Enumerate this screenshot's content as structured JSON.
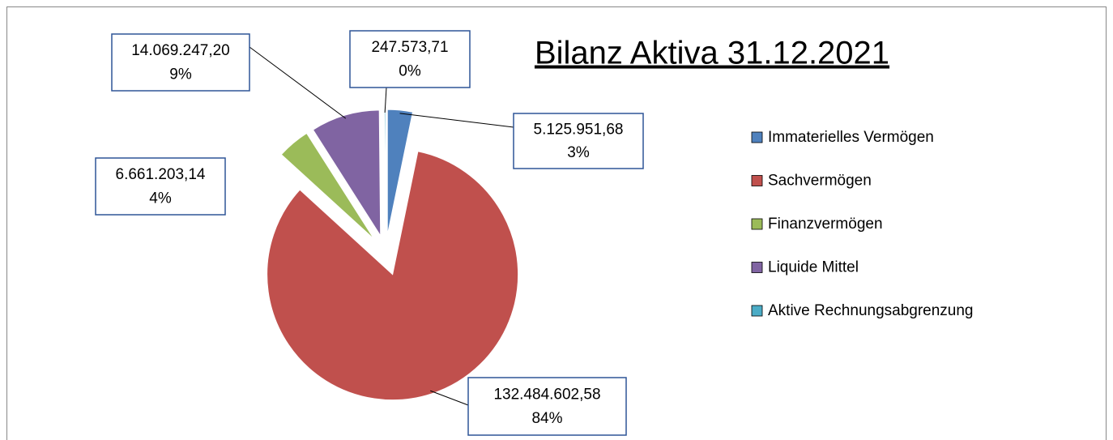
{
  "chart_data": {
    "type": "pie",
    "title": "Bilanz Aktiva 31.12.2021",
    "categories": [
      "Immaterielles Vermögen",
      "Sachvermögen",
      "Finanzvermögen",
      "Liquide Mittel",
      "Aktive Rechnungsabgrenzung"
    ],
    "values": [
      5125951.68,
      132484602.58,
      6661203.14,
      14069247.2,
      247573.71
    ],
    "value_labels": [
      "5.125.951,68",
      "132.484.602,58",
      "6.661.203,14",
      "14.069.247,20",
      "247.573,71"
    ],
    "percent_labels": [
      "3%",
      "84%",
      "4%",
      "9%",
      "0%"
    ],
    "colors": [
      "#4f81bd",
      "#c0504d",
      "#9bbb59",
      "#8064a2",
      "#4bacc6"
    ],
    "legend": "right"
  }
}
